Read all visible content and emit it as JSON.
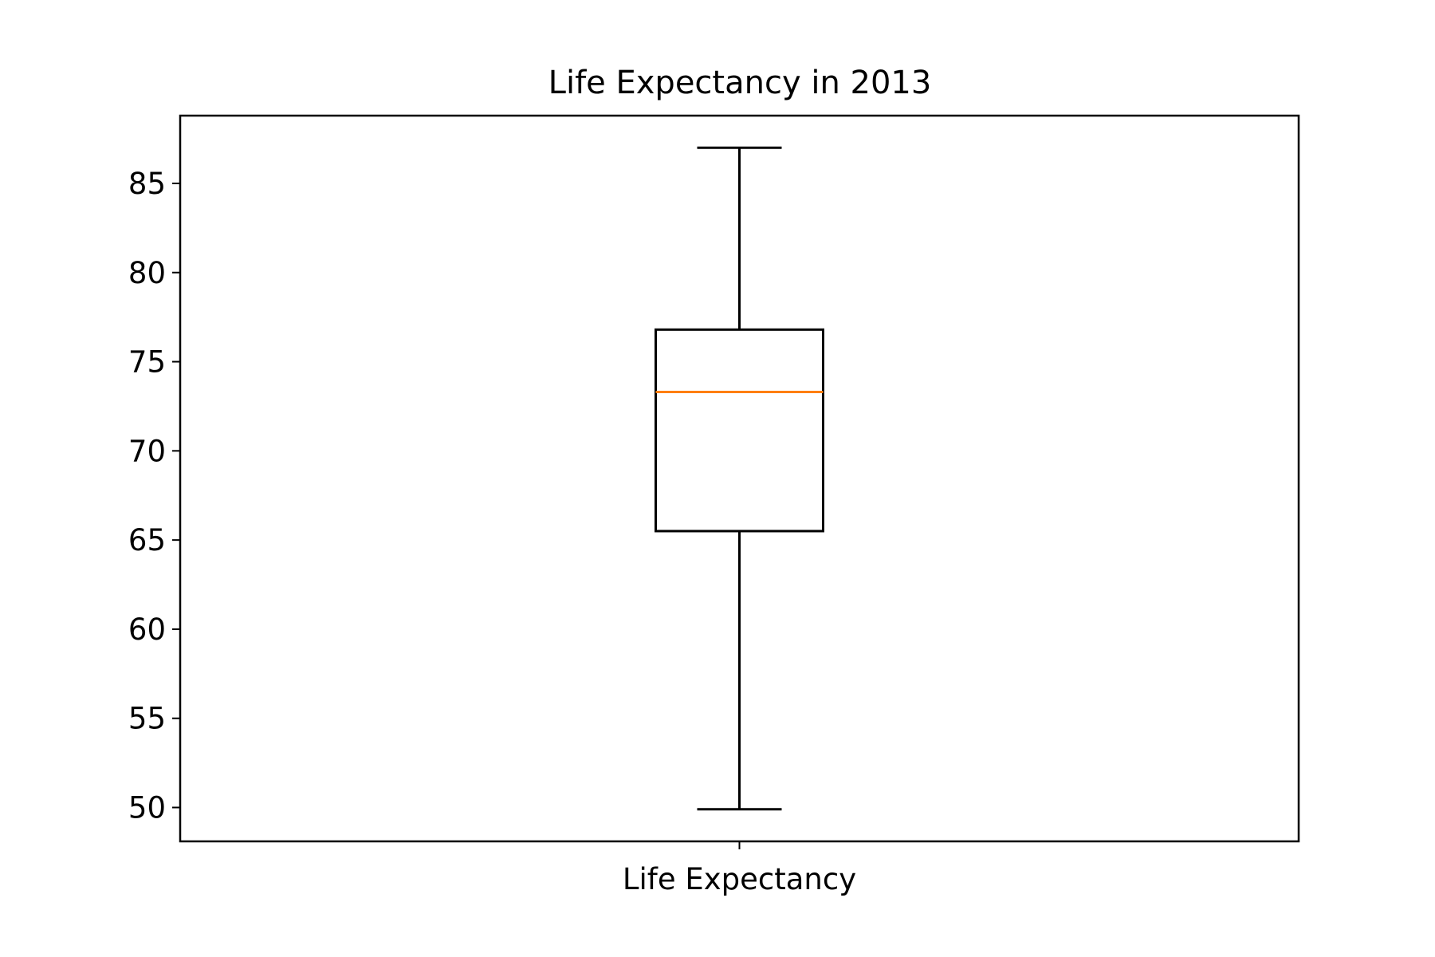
{
  "chart_data": {
    "type": "box",
    "title": "Life Expectancy in 2013",
    "xlabel": "",
    "ylabel": "",
    "categories": [
      "Life Expectancy"
    ],
    "boxes": [
      {
        "category": "Life Expectancy",
        "whisker_low": 49.9,
        "q1": 65.5,
        "median": 73.3,
        "q3": 76.8,
        "whisker_high": 87.0
      }
    ],
    "ylim": [
      48.1,
      88.8
    ],
    "yticks": [
      50,
      55,
      60,
      65,
      70,
      75,
      80,
      85
    ],
    "grid": false,
    "legend": "none",
    "colors": {
      "box": "#000000",
      "median": "#ff7f0e",
      "axes": "#000000"
    }
  }
}
